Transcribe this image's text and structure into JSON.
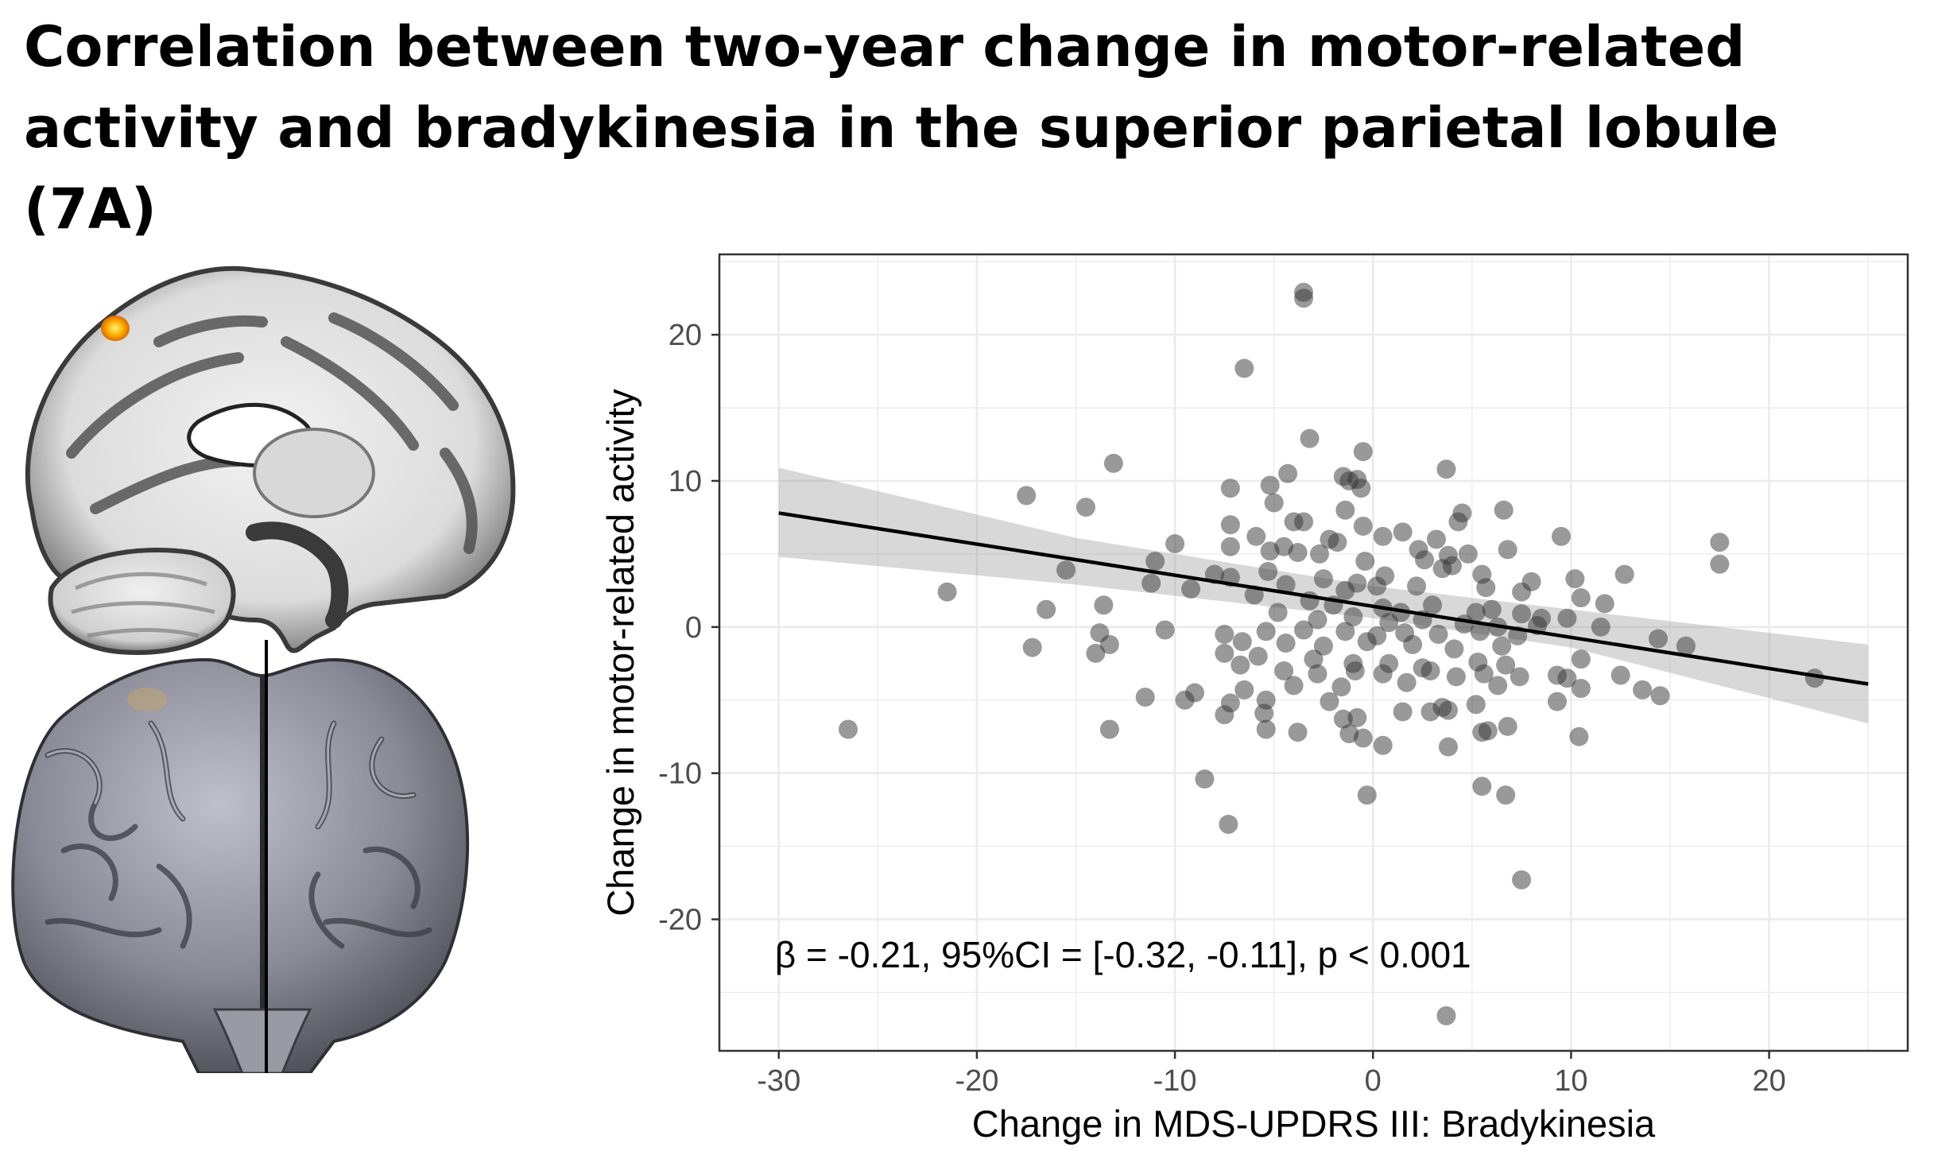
{
  "page": {
    "title": "Correlation between two-year change in motor-related activity and bradykinesia in the superior parietal lobule (7A)"
  },
  "chart_data": {
    "type": "scatter",
    "xlabel": "Change in MDS-UPDRS III: Bradykinesia",
    "ylabel": "Change in motor-related activity",
    "xlim": [
      -33,
      27
    ],
    "ylim": [
      -29,
      25.5
    ],
    "xticks": [
      -30,
      -20,
      -10,
      0,
      10,
      20
    ],
    "yticks": [
      -20,
      -10,
      0,
      10,
      20
    ],
    "grid": true,
    "annotation": "β = -0.21, 95%CI = [-0.32, -0.11], p < 0.001",
    "point_color": "#333333",
    "fit_line": {
      "x": [
        -30,
        25
      ],
      "y": [
        7.8,
        -3.9
      ]
    },
    "confidence_band": {
      "x": [
        -30,
        -15,
        0,
        10,
        25
      ],
      "lower": [
        4.8,
        2.9,
        0.6,
        -1.4,
        -6.6
      ],
      "upper": [
        10.9,
        6.1,
        2.8,
        1.2,
        -1.2
      ]
    },
    "points": [
      [
        -3.5,
        22.9
      ],
      [
        -3.5,
        22.5
      ],
      [
        -6.5,
        17.7
      ],
      [
        -3.2,
        12.9
      ],
      [
        -0.5,
        12.0
      ],
      [
        -13.1,
        11.2
      ],
      [
        3.7,
        10.8
      ],
      [
        -1.5,
        10.3
      ],
      [
        -0.8,
        10.1
      ],
      [
        -1.2,
        10.0
      ],
      [
        -4.3,
        10.5
      ],
      [
        -0.6,
        9.5
      ],
      [
        -7.2,
        9.5
      ],
      [
        -5.2,
        9.7
      ],
      [
        -17.5,
        9.0
      ],
      [
        -14.5,
        8.2
      ],
      [
        -5.0,
        8.5
      ],
      [
        6.6,
        8.0
      ],
      [
        -1.4,
        8.0
      ],
      [
        4.5,
        7.8
      ],
      [
        4.3,
        7.2
      ],
      [
        -4.0,
        7.2
      ],
      [
        -3.5,
        7.2
      ],
      [
        -5.9,
        6.2
      ],
      [
        -2.2,
        6.0
      ],
      [
        -7.2,
        7.0
      ],
      [
        -0.5,
        6.9
      ],
      [
        1.5,
        6.5
      ],
      [
        0.5,
        6.2
      ],
      [
        3.2,
        6.0
      ],
      [
        9.5,
        6.2
      ],
      [
        17.5,
        5.8
      ],
      [
        -10.0,
        5.7
      ],
      [
        -4.5,
        5.5
      ],
      [
        -1.8,
        5.8
      ],
      [
        -7.2,
        5.5
      ],
      [
        -5.2,
        5.2
      ],
      [
        2.3,
        5.3
      ],
      [
        3.8,
        4.9
      ],
      [
        4.8,
        5.0
      ],
      [
        6.8,
        5.3
      ],
      [
        17.5,
        4.3
      ],
      [
        -3.8,
        5.1
      ],
      [
        -2.7,
        5.0
      ],
      [
        -0.4,
        4.5
      ],
      [
        2.6,
        4.6
      ],
      [
        3.5,
        4.0
      ],
      [
        -15.5,
        3.9
      ],
      [
        -11.0,
        4.5
      ],
      [
        -8.0,
        3.6
      ],
      [
        -5.3,
        3.8
      ],
      [
        -2.5,
        3.3
      ],
      [
        -0.8,
        3.0
      ],
      [
        0.6,
        3.5
      ],
      [
        4.0,
        4.2
      ],
      [
        5.5,
        3.6
      ],
      [
        8.0,
        3.1
      ],
      [
        10.2,
        3.3
      ],
      [
        12.7,
        3.6
      ],
      [
        -11.2,
        3.0
      ],
      [
        -7.2,
        3.4
      ],
      [
        -4.4,
        2.9
      ],
      [
        -1.4,
        2.5
      ],
      [
        0.2,
        2.8
      ],
      [
        2.2,
        2.8
      ],
      [
        5.7,
        2.7
      ],
      [
        7.5,
        2.4
      ],
      [
        10.5,
        2.0
      ],
      [
        11.7,
        1.6
      ],
      [
        -21.5,
        2.4
      ],
      [
        -13.6,
        1.5
      ],
      [
        -6.0,
        2.2
      ],
      [
        -3.2,
        1.8
      ],
      [
        -2.0,
        1.5
      ],
      [
        0.5,
        1.3
      ],
      [
        1.4,
        1.0
      ],
      [
        3.0,
        1.5
      ],
      [
        5.2,
        1.0
      ],
      [
        6.0,
        1.2
      ],
      [
        7.5,
        0.9
      ],
      [
        8.5,
        0.6
      ],
      [
        9.8,
        0.6
      ],
      [
        -16.5,
        1.2
      ],
      [
        -9.2,
        2.6
      ],
      [
        -4.8,
        1.0
      ],
      [
        -2.8,
        0.5
      ],
      [
        -1.0,
        0.7
      ],
      [
        0.8,
        0.3
      ],
      [
        2.5,
        0.5
      ],
      [
        4.6,
        0.2
      ],
      [
        6.3,
        0.0
      ],
      [
        8.3,
        0.1
      ],
      [
        11.5,
        0.0
      ],
      [
        -10.5,
        -0.2
      ],
      [
        -7.5,
        -0.5
      ],
      [
        -5.4,
        -0.3
      ],
      [
        -3.5,
        -0.2
      ],
      [
        -1.4,
        -0.3
      ],
      [
        0.2,
        -0.6
      ],
      [
        1.6,
        -0.4
      ],
      [
        3.3,
        -0.5
      ],
      [
        5.4,
        -0.3
      ],
      [
        7.3,
        -0.6
      ],
      [
        -13.8,
        -0.4
      ],
      [
        -13.3,
        -1.2
      ],
      [
        -6.6,
        -1.0
      ],
      [
        -4.4,
        -1.1
      ],
      [
        -2.5,
        -1.3
      ],
      [
        -0.3,
        -1.0
      ],
      [
        2.0,
        -1.2
      ],
      [
        4.1,
        -1.5
      ],
      [
        6.5,
        -1.3
      ],
      [
        10.5,
        -2.2
      ],
      [
        14.4,
        -0.8
      ],
      [
        15.8,
        -1.3
      ],
      [
        -17.2,
        -1.4
      ],
      [
        -7.5,
        -1.8
      ],
      [
        -5.8,
        -2.0
      ],
      [
        -3.0,
        -2.2
      ],
      [
        -1.0,
        -2.5
      ],
      [
        0.8,
        -2.5
      ],
      [
        2.5,
        -2.8
      ],
      [
        5.3,
        -2.4
      ],
      [
        6.7,
        -2.6
      ],
      [
        9.3,
        -3.3
      ],
      [
        12.5,
        -3.3
      ],
      [
        -14.0,
        -1.8
      ],
      [
        -6.7,
        -2.6
      ],
      [
        -4.5,
        -3.0
      ],
      [
        -2.8,
        -3.2
      ],
      [
        -0.9,
        -3.0
      ],
      [
        0.5,
        -3.2
      ],
      [
        2.9,
        -3.0
      ],
      [
        5.6,
        -3.2
      ],
      [
        7.4,
        -3.4
      ],
      [
        9.8,
        -3.5
      ],
      [
        13.6,
        -4.3
      ],
      [
        14.5,
        -4.7
      ],
      [
        22.3,
        -3.5
      ],
      [
        -9.0,
        -4.5
      ],
      [
        -6.5,
        -4.3
      ],
      [
        -4.0,
        -4.0
      ],
      [
        -1.6,
        -4.1
      ],
      [
        1.7,
        -3.8
      ],
      [
        4.2,
        -3.4
      ],
      [
        6.3,
        -4.0
      ],
      [
        10.5,
        -4.2
      ],
      [
        -11.5,
        -4.8
      ],
      [
        -9.5,
        -5.0
      ],
      [
        -7.2,
        -5.2
      ],
      [
        -5.4,
        -5.0
      ],
      [
        -2.2,
        -5.1
      ],
      [
        1.5,
        -5.8
      ],
      [
        3.5,
        -5.5
      ],
      [
        5.2,
        -5.3
      ],
      [
        9.3,
        -5.1
      ],
      [
        -7.5,
        -6.0
      ],
      [
        -5.5,
        -5.9
      ],
      [
        -1.5,
        -6.3
      ],
      [
        -0.8,
        -6.2
      ],
      [
        2.9,
        -5.8
      ],
      [
        3.8,
        -5.7
      ],
      [
        -13.3,
        -7.0
      ],
      [
        -5.4,
        -7.0
      ],
      [
        -3.8,
        -7.2
      ],
      [
        -1.2,
        -7.3
      ],
      [
        -0.5,
        -7.6
      ],
      [
        0.5,
        -8.1
      ],
      [
        3.8,
        -8.2
      ],
      [
        5.5,
        -7.2
      ],
      [
        5.8,
        -7.1
      ],
      [
        6.8,
        -6.8
      ],
      [
        10.4,
        -7.5
      ],
      [
        -26.5,
        -7.0
      ],
      [
        -8.5,
        -10.4
      ],
      [
        -0.3,
        -11.5
      ],
      [
        5.5,
        -10.9
      ],
      [
        6.7,
        -11.5
      ],
      [
        -7.3,
        -13.5
      ],
      [
        7.5,
        -17.3
      ],
      [
        3.7,
        -26.6
      ]
    ]
  }
}
